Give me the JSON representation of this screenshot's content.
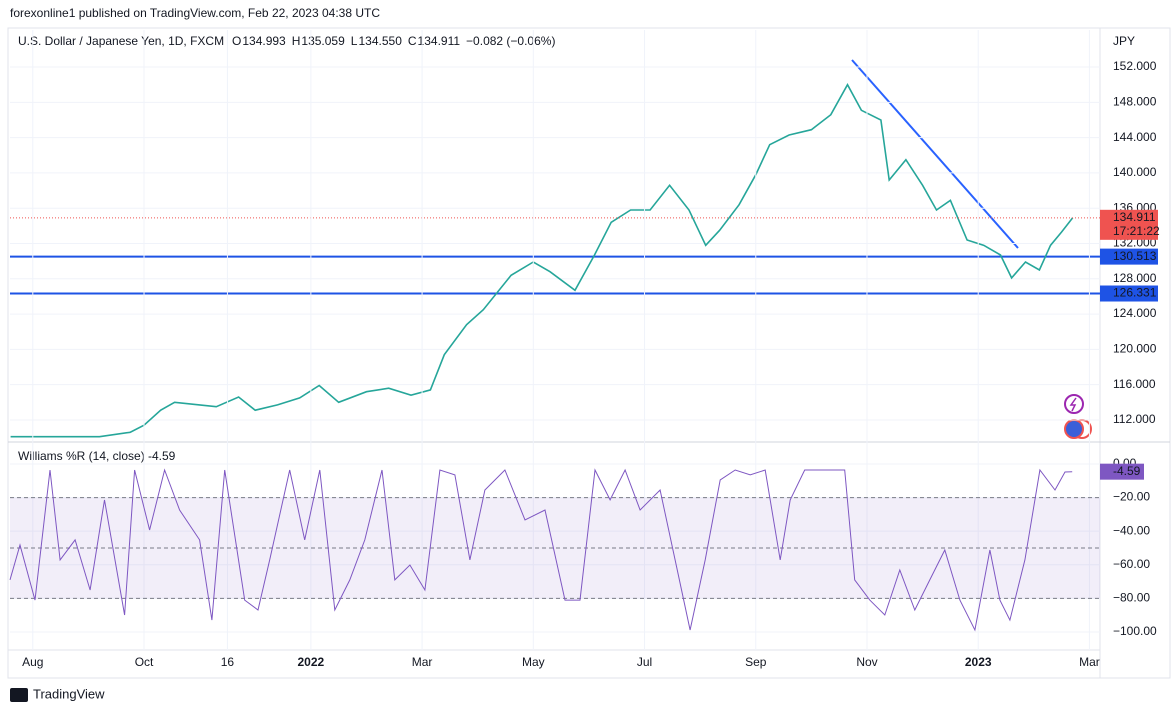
{
  "header": {
    "published": "forexonline1 published on TradingView.com, Feb 22, 2023 04:38 UTC",
    "brand": "TradingView"
  },
  "chart_data": [
    {
      "type": "line",
      "title": "U.S. Dollar / Japanese Yen, 1D, FXCM",
      "unit": "JPY",
      "ohlc": [
        {
          "label": "O",
          "value": "134.993"
        },
        {
          "label": "H",
          "value": "135.059"
        },
        {
          "label": "L",
          "value": "134.550"
        },
        {
          "label": "C",
          "value": "134.911"
        }
      ],
      "change": "−0.082 (−0.06%)",
      "countdown": "17:21:22",
      "color": "#26a69a",
      "last_color": "#ef5350",
      "x": [
        -0.4,
        0.5,
        1.2,
        1.75,
        2.0,
        2.3,
        2.55,
        3.0,
        3.3,
        3.7,
        4.0,
        4.4,
        4.8,
        5.15,
        5.5,
        6.0,
        6.4,
        6.8,
        7.15,
        7.4,
        7.8,
        8.1,
        8.6,
        9.0,
        9.3,
        9.75,
        10.1,
        10.4,
        10.75,
        11.1,
        11.45,
        11.8,
        12.1,
        12.35,
        12.7,
        13.0,
        13.25,
        13.6,
        14.0,
        14.35,
        14.65,
        14.9,
        15.25,
        15.4,
        15.7,
        16.0,
        16.25,
        16.5,
        16.8,
        17.1,
        17.4,
        17.6,
        17.85,
        18.1,
        18.3,
        18.5,
        18.7
      ],
      "values": [
        110.1,
        110.1,
        110.1,
        110.6,
        111.4,
        113.1,
        114.0,
        113.7,
        113.5,
        114.6,
        113.1,
        113.7,
        114.5,
        115.9,
        114.0,
        115.2,
        115.6,
        114.8,
        115.4,
        119.4,
        122.8,
        124.5,
        128.4,
        129.9,
        128.8,
        126.7,
        130.7,
        134.4,
        135.8,
        135.8,
        138.6,
        135.8,
        131.8,
        133.5,
        136.4,
        139.8,
        143.2,
        144.3,
        144.9,
        146.6,
        150.0,
        147.1,
        146.0,
        139.2,
        141.5,
        138.6,
        135.8,
        136.9,
        132.4,
        131.8,
        130.7,
        128.1,
        129.9,
        129.0,
        131.8,
        133.3,
        134.911
      ],
      "levels": [
        {
          "value": 130.513,
          "color": "#1e53e5"
        },
        {
          "value": 126.331,
          "color": "#1e53e5"
        }
      ],
      "xlim": [
        -0.41,
        19.19
      ],
      "ylim": [
        109.5,
        156.2
      ],
      "yticks": [
        {
          "value": 112,
          "label": "112.000"
        },
        {
          "value": 116,
          "label": "116.000"
        },
        {
          "value": 120,
          "label": "120.000"
        },
        {
          "value": 124,
          "label": "124.000"
        },
        {
          "value": 128,
          "label": "128.000"
        },
        {
          "value": 132,
          "label": "132.000"
        },
        {
          "value": 136,
          "label": "136.000"
        },
        {
          "value": 140,
          "label": "140.000"
        },
        {
          "value": 144,
          "label": "144.000"
        },
        {
          "value": 148,
          "label": "148.000"
        },
        {
          "value": 152,
          "label": "152.000"
        }
      ],
      "grid": true
    },
    {
      "type": "line",
      "title": "Williams %R (14, close)",
      "color": "#7e57c2",
      "x": [
        -0.41,
        -0.23,
        0.04,
        0.31,
        0.49,
        0.76,
        1.03,
        1.29,
        1.65,
        1.83,
        2.1,
        2.37,
        2.64,
        3.0,
        3.22,
        3.45,
        3.81,
        4.05,
        4.26,
        4.62,
        4.89,
        5.16,
        5.43,
        5.7,
        5.97,
        6.28,
        6.51,
        6.78,
        7.05,
        7.32,
        7.59,
        7.86,
        8.13,
        8.49,
        8.85,
        9.21,
        9.57,
        9.84,
        10.11,
        10.38,
        10.65,
        10.92,
        11.28,
        11.55,
        11.82,
        12.09,
        12.36,
        12.63,
        12.9,
        13.17,
        13.44,
        13.62,
        13.88,
        14.24,
        14.6,
        14.78,
        15.05,
        15.32,
        15.59,
        15.86,
        16.13,
        16.4,
        16.67,
        16.94,
        17.21,
        17.39,
        17.57,
        17.84,
        18.11,
        18.38,
        18.56,
        18.69
      ],
      "values": [
        -69,
        -48.2,
        -81,
        -3.6,
        -57.1,
        -45.2,
        -75,
        -21.4,
        -89.9,
        -3.6,
        -39.3,
        -3.6,
        -27.4,
        -45.2,
        -92.9,
        -3.6,
        -81,
        -86.9,
        -57.1,
        -3.6,
        -45.2,
        -3.6,
        -86.9,
        -69,
        -45.2,
        -3.6,
        -69,
        -60.1,
        -75,
        -3.6,
        -6.5,
        -57.1,
        -15.5,
        -3.6,
        -33.3,
        -27.4,
        -81,
        -81,
        -3.6,
        -21.4,
        -3.6,
        -27.4,
        -15.5,
        -57.1,
        -98.8,
        -57.1,
        -9.5,
        -3.6,
        -6.5,
        -3.6,
        -57.1,
        -21.4,
        -3.6,
        -3.6,
        -3.6,
        -69,
        -81,
        -89.9,
        -63.1,
        -86.9,
        -69,
        -51.2,
        -81,
        -98.8,
        -51.2,
        -81,
        -92.9,
        -57.1,
        -3.6,
        -15.5,
        -4.8,
        -4.59
      ],
      "levels": [
        -20,
        -50,
        -80
      ],
      "xlim": [
        -0.41,
        19.19
      ],
      "ylim": [
        -110.7,
        8.3
      ],
      "yticks": [
        {
          "value": 0,
          "label": "0.00"
        },
        {
          "value": -20,
          "label": "−20.00"
        },
        {
          "value": -40,
          "label": "−40.00"
        },
        {
          "value": -60,
          "label": "−60.00"
        },
        {
          "value": -80,
          "label": "−80.00"
        },
        {
          "value": -100,
          "label": "−100.00"
        }
      ],
      "xticks": [
        {
          "value": 0,
          "label": "Aug"
        },
        {
          "value": 2,
          "label": "Oct"
        },
        {
          "value": 3.5,
          "label": "16"
        },
        {
          "value": 5,
          "label": "2022"
        },
        {
          "value": 7,
          "label": "Mar"
        },
        {
          "value": 9,
          "label": "May"
        },
        {
          "value": 11,
          "label": "Jul"
        },
        {
          "value": 13,
          "label": "Sep"
        },
        {
          "value": 15,
          "label": "Nov"
        },
        {
          "value": 17,
          "label": "2023"
        },
        {
          "value": 19,
          "label": "Mar"
        }
      ],
      "grid": true
    }
  ]
}
